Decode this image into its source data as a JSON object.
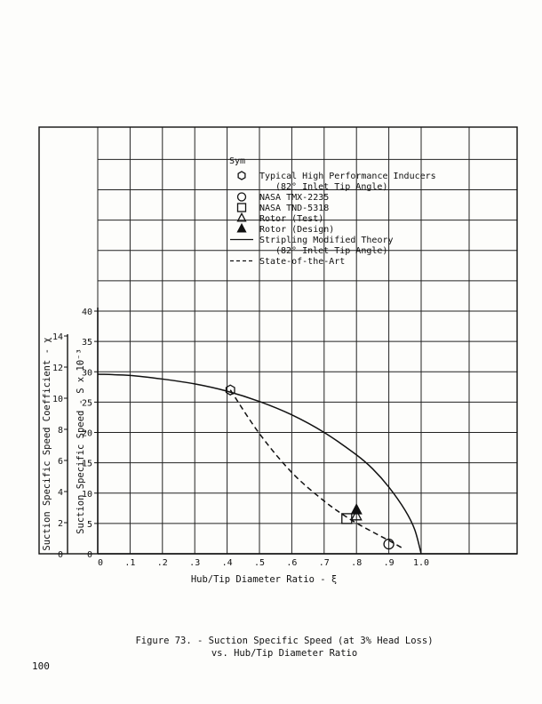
{
  "chart_data": {
    "type": "line",
    "xlabel": "Hub/Tip Diameter Ratio - ξ",
    "ylabel": "Suction Specific Speed - S x 10⁻³",
    "ylabel_secondary": "Suction Specific Speed Coefficient - χ",
    "xlim": [
      0,
      1.0
    ],
    "ylim": [
      0,
      40
    ],
    "ylim_secondary": [
      0,
      14
    ],
    "x_tick_labels": [
      "0",
      ".1",
      ".2",
      ".3",
      ".4",
      ".5",
      ".6",
      ".7",
      ".8",
      ".9",
      "1.0"
    ],
    "y_tick_labels": [
      "0",
      "5",
      "10",
      "15",
      "20",
      "25",
      "30",
      "35",
      "40"
    ],
    "y_secondary_tick_labels": [
      "0",
      "2",
      "4",
      "6",
      "8",
      "10",
      "12",
      "14"
    ],
    "grid": true,
    "legend_title": "Sym",
    "legend": [
      {
        "symbol": "hexagon-open",
        "lines": [
          "Typical High Performance Inducers",
          "(82° Inlet Tip Angle)"
        ]
      },
      {
        "symbol": "circle-open",
        "lines": [
          "NASA TMX-2235"
        ]
      },
      {
        "symbol": "square-open",
        "lines": [
          "NASA TND-5318"
        ]
      },
      {
        "symbol": "triangle-open",
        "lines": [
          "Rotor (Test)"
        ]
      },
      {
        "symbol": "triangle-filled",
        "lines": [
          "Rotor (Design)"
        ]
      },
      {
        "symbol": "solid-line",
        "lines": [
          "Stripling Modified Theory",
          "(82° Inlet Tip Angle)"
        ]
      },
      {
        "symbol": "dashed-line",
        "lines": [
          "State-of-the-Art"
        ]
      }
    ],
    "series": [
      {
        "name": "Stripling Modified Theory",
        "style": "solid",
        "x": [
          0,
          0.1,
          0.2,
          0.3,
          0.4,
          0.5,
          0.6,
          0.7,
          0.8,
          0.85,
          0.9,
          0.95,
          0.98,
          1.0
        ],
        "y": [
          29.6,
          29.4,
          28.8,
          28.0,
          26.8,
          25.1,
          22.9,
          20.0,
          16.3,
          14.0,
          11.0,
          7.2,
          4.0,
          0
        ]
      },
      {
        "name": "State-of-the-Art",
        "style": "dashed",
        "x": [
          0.41,
          0.5,
          0.6,
          0.7,
          0.78,
          0.85,
          0.9,
          0.94
        ],
        "y": [
          27.0,
          19.8,
          13.4,
          8.7,
          5.7,
          3.6,
          2.2,
          1.0
        ]
      }
    ],
    "points": [
      {
        "name": "Typical High Performance Inducers",
        "marker": "hexagon-open",
        "x": 0.41,
        "y": 27.0
      },
      {
        "name": "NASA TMX-2235",
        "marker": "circle-open",
        "x": 0.9,
        "y": 1.6
      },
      {
        "name": "NASA TND-5318",
        "marker": "square-open",
        "x": 0.77,
        "y": 5.8
      },
      {
        "name": "Rotor (Test)",
        "marker": "triangle-open",
        "x": 0.8,
        "y": 6.2
      },
      {
        "name": "Rotor (Design)",
        "marker": "triangle-filled",
        "x": 0.8,
        "y": 7.2
      }
    ]
  },
  "caption_line1": "Figure 73. - Suction Specific Speed (at 3% Head Loss)",
  "caption_line2": "vs. Hub/Tip Diameter Ratio",
  "page_number": "100"
}
